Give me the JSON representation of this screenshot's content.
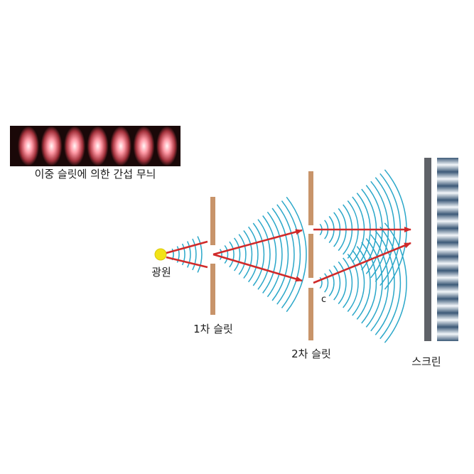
{
  "fringe_caption": "이중 슬릿에 의한 간섭 무늬",
  "source_label": "광원",
  "slit1_label": "1차 슬릿",
  "slit2_label": "2차 슬릿",
  "point_c_label": "c",
  "screen_label": "스크린",
  "colors": {
    "wave": "#2aa7c9",
    "ray": "#d02a2a",
    "slit": "#c8946a",
    "screen": "#5f6268",
    "source": "#f2e318",
    "fringe_bright": "#ff9aa6",
    "fringe_dark": "#1a0808"
  },
  "fringe_band_count": 7,
  "screen_band_count": 13
}
